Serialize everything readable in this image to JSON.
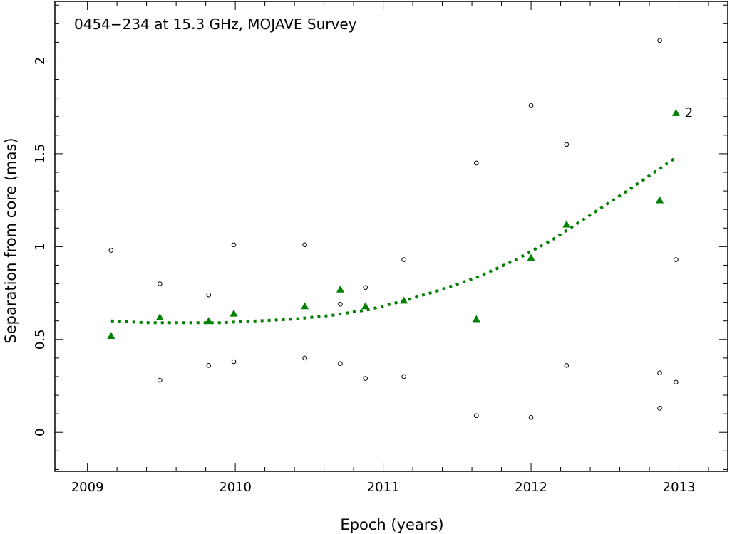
{
  "chart_data": {
    "type": "scatter",
    "title": "0454−234 at 15.3 GHz, MOJAVE Survey",
    "xlabel": "Epoch (years)",
    "ylabel": "Separation from core (mas)",
    "xlim": [
      2008.78,
      2013.33
    ],
    "ylim": [
      -0.21,
      2.32
    ],
    "x_ticks": [
      "2009",
      "2010",
      "2011",
      "2012",
      "2013"
    ],
    "y_ticks": [
      "0",
      "0.5",
      "1",
      "1.5",
      "2"
    ],
    "grid": false,
    "colors": {
      "component": "#008000",
      "label": "#66cc66",
      "other": "#000000"
    },
    "series": [
      {
        "name": "2",
        "marker": "filled-triangle",
        "color": "#008000",
        "x": [
          2009.16,
          2009.49,
          2009.82,
          2009.99,
          2010.47,
          2010.71,
          2010.88,
          2011.14,
          2011.63,
          2012.0,
          2012.24,
          2012.87,
          2012.98
        ],
        "y": [
          0.52,
          0.62,
          0.6,
          0.64,
          0.68,
          0.77,
          0.68,
          0.71,
          0.61,
          0.94,
          1.12,
          1.25,
          1.72
        ]
      },
      {
        "marker": "open-circle",
        "color": "#000000",
        "x": [
          2009.16,
          2009.49,
          2009.49,
          2009.82,
          2009.82,
          2009.99,
          2009.99,
          2010.47,
          2010.47,
          2010.71,
          2010.71,
          2010.88,
          2010.88,
          2011.14,
          2011.14,
          2011.63,
          2011.63,
          2012.0,
          2012.0,
          2012.24,
          2012.24,
          2012.87,
          2012.87,
          2012.87,
          2012.98,
          2012.98
        ],
        "y": [
          0.98,
          0.8,
          0.28,
          0.74,
          0.36,
          1.01,
          0.38,
          1.01,
          0.4,
          0.69,
          0.37,
          0.78,
          0.29,
          0.93,
          0.3,
          1.45,
          0.09,
          1.76,
          0.08,
          1.55,
          0.36,
          2.11,
          0.32,
          0.13,
          0.93,
          0.27
        ]
      }
    ],
    "fit": {
      "style": "dotted",
      "color": "#008000",
      "x": [
        2009.16,
        2009.4,
        2009.65,
        2009.9,
        2010.15,
        2010.4,
        2010.65,
        2010.9,
        2011.15,
        2011.4,
        2011.65,
        2011.9,
        2012.15,
        2012.4,
        2012.65,
        2012.98
      ],
      "y": [
        0.6,
        0.59,
        0.59,
        0.59,
        0.6,
        0.61,
        0.63,
        0.66,
        0.71,
        0.77,
        0.84,
        0.93,
        1.04,
        1.17,
        1.3,
        1.48
      ]
    },
    "annotation": {
      "text": "2"
    }
  }
}
